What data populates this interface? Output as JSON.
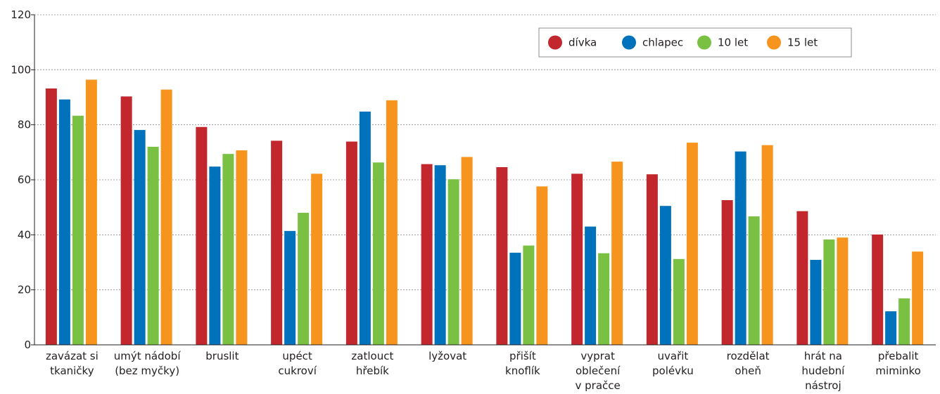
{
  "chart_data": {
    "type": "bar",
    "categories": [
      [
        "zavázat si",
        "tkaničky"
      ],
      [
        "umýt nádobí",
        "(bez myčky)"
      ],
      [
        "bruslit"
      ],
      [
        "upéct",
        "cukroví"
      ],
      [
        "zatlouct",
        "hřebík"
      ],
      [
        "lyžovat"
      ],
      [
        "přišít",
        "knoflík"
      ],
      [
        "vyprat",
        "oblečení",
        "v pračce"
      ],
      [
        "uvařit",
        "polévku"
      ],
      [
        "rozdělat",
        "oheň"
      ],
      [
        "hrát na",
        "hudební",
        "nástroj"
      ],
      [
        "přebalit",
        "miminko"
      ]
    ],
    "series": [
      {
        "name": "dívka",
        "color": "#c1272d",
        "values": [
          93.2,
          90.3,
          79.2,
          74.2,
          73.9,
          65.7,
          64.6,
          62.2,
          62.0,
          52.6,
          48.6,
          40.1
        ]
      },
      {
        "name": "chlapec",
        "color": "#0072bc",
        "values": [
          89.2,
          78.1,
          64.8,
          41.4,
          84.8,
          65.3,
          33.5,
          43.0,
          50.5,
          70.3,
          30.9,
          12.2
        ]
      },
      {
        "name": "10 let",
        "color": "#7ac143",
        "values": [
          83.3,
          72.0,
          69.4,
          48.0,
          66.3,
          60.2,
          36.1,
          33.3,
          31.2,
          46.7,
          38.3,
          16.9
        ]
      },
      {
        "name": "15 let",
        "color": "#f7941d",
        "values": [
          96.4,
          92.8,
          70.7,
          62.2,
          88.9,
          68.3,
          57.6,
          66.6,
          73.5,
          72.6,
          39.0,
          33.9
        ]
      }
    ],
    "y_ticks": [
      "0",
      "20",
      "40",
      "60",
      "80",
      "100",
      "120"
    ],
    "ylim": [
      0,
      120
    ],
    "grid": true,
    "legend_position": "top-right"
  }
}
